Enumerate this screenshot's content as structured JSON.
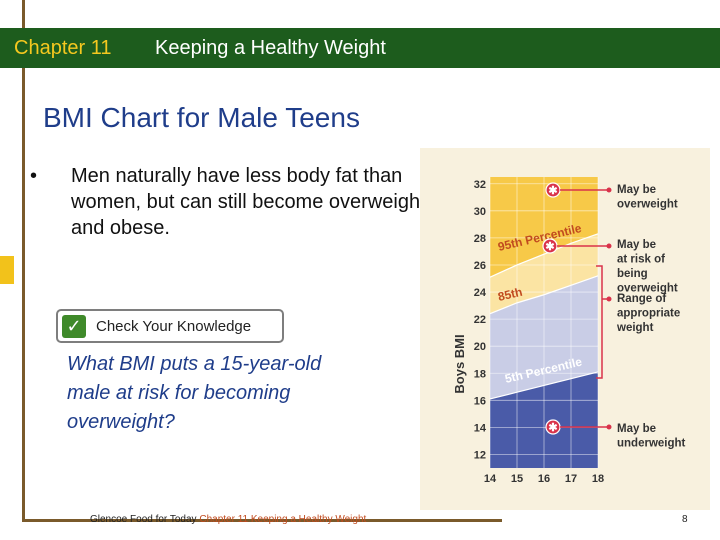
{
  "header": {
    "chapter": "Chapter 11",
    "title": "Keeping a Healthy Weight"
  },
  "slide": {
    "title": "BMI Chart for Male Teens",
    "bullet": "Men naturally have less body fat than women, but can still become overweight and obese.",
    "check_knowledge_label": "Check Your Knowledge",
    "question": "What BMI puts a 15-year-old male at risk for becoming overweight?"
  },
  "footer": {
    "source_prefix": "Glencoe Food for Today",
    "source_highlight": "Chapter 11 Keeping a Healthy Weight",
    "page_number": "8"
  },
  "colors": {
    "title_bar": "#1d5c1d",
    "chapter_text": "#f5c81f",
    "title_text": "#1f3d8a",
    "overweight_zone": "#f7c948",
    "at_risk_zone": "#fbe4a3",
    "appropriate_zone": "#c9cde6",
    "underweight_zone": "#4a5ba8",
    "marker": "#d9324a"
  },
  "chart_data": {
    "type": "area",
    "ylabel": "Boys BMI",
    "x": [
      14,
      15,
      16,
      17,
      18
    ],
    "x_ticks": [
      "14",
      "15",
      "16",
      "17",
      "18"
    ],
    "y_ticks": [
      "12",
      "14",
      "16",
      "18",
      "20",
      "22",
      "24",
      "26",
      "28",
      "30",
      "32"
    ],
    "xlim": [
      14,
      18
    ],
    "ylim": [
      11,
      32.5
    ],
    "series": [
      {
        "name": "95th Percentile",
        "values": [
          25.1,
          26.0,
          26.8,
          27.6,
          28.3
        ]
      },
      {
        "name": "85th",
        "values": [
          22.4,
          23.2,
          23.8,
          24.5,
          25.2
        ]
      },
      {
        "name": "5th Percentile",
        "values": [
          16.1,
          16.6,
          17.1,
          17.6,
          18.1
        ]
      }
    ],
    "percentile_labels": [
      "95th Percentile",
      "85th",
      "5th Percentile"
    ],
    "legend": [
      "May be overweight",
      "May be at risk of being overweight",
      "Range of appropriate weight",
      "May be underweight"
    ],
    "legend_placement": "right",
    "grid": true
  }
}
